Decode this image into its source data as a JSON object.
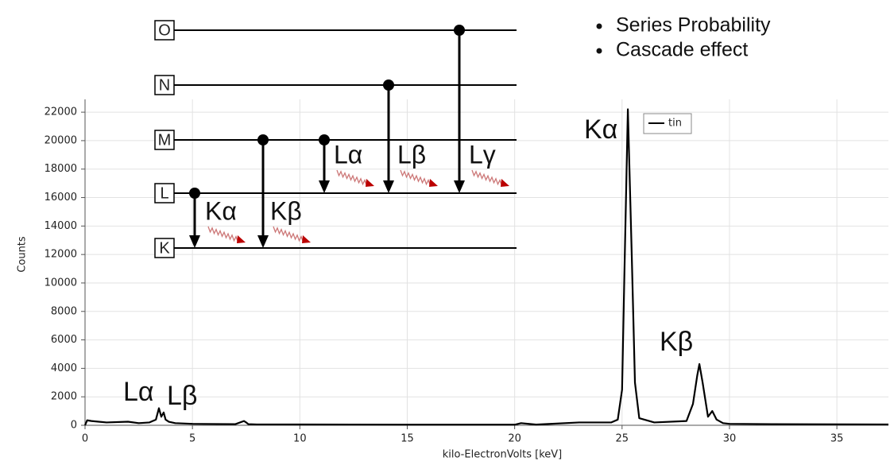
{
  "chart_data": {
    "type": "line",
    "xlabel": "kilo-ElectronVolts [keV]",
    "ylabel": "Counts",
    "x": [
      0,
      0.1,
      0.3,
      1,
      2,
      2.5,
      3,
      3.3,
      3.44,
      3.55,
      3.66,
      3.75,
      3.9,
      4.2,
      5,
      7,
      7.4,
      7.5,
      7.6,
      8,
      15,
      20,
      20.3,
      21,
      23,
      24.5,
      24.8,
      25.0,
      25.1,
      25.27,
      25.45,
      25.6,
      25.8,
      26.5,
      28,
      28.3,
      28.5,
      28.6,
      28.75,
      29.0,
      29.2,
      29.4,
      29.7,
      30,
      32,
      37.4
    ],
    "series": [
      {
        "name": "tin",
        "color": "#000000",
        "values": [
          0,
          350,
          300,
          200,
          250,
          150,
          200,
          400,
          1200,
          600,
          900,
          400,
          250,
          150,
          100,
          80,
          300,
          200,
          80,
          60,
          40,
          40,
          150,
          50,
          200,
          200,
          400,
          2500,
          10000,
          22200,
          12000,
          3000,
          500,
          200,
          300,
          1500,
          3500,
          4300,
          3000,
          600,
          1000,
          400,
          150,
          100,
          80,
          60
        ]
      }
    ],
    "xlim": [
      0,
      37.4
    ],
    "ylim": [
      0,
      22900
    ],
    "xticks": [
      0,
      5,
      10,
      15,
      20,
      25,
      30,
      35
    ],
    "yticks": [
      0,
      2000,
      4000,
      6000,
      8000,
      10000,
      12000,
      14000,
      16000,
      18000,
      20000,
      22000
    ],
    "grid": true,
    "legend": "upper right",
    "annotations": [
      "Kα",
      "Kβ",
      "Lα",
      "Lβ"
    ]
  },
  "diagram": {
    "shells": [
      "O",
      "N",
      "M",
      "L",
      "K"
    ],
    "transitions": [
      "Kα",
      "Kβ",
      "Lα",
      "Lβ",
      "Lγ"
    ],
    "bullets": [
      "Series Probability",
      "Cascade effect"
    ]
  }
}
